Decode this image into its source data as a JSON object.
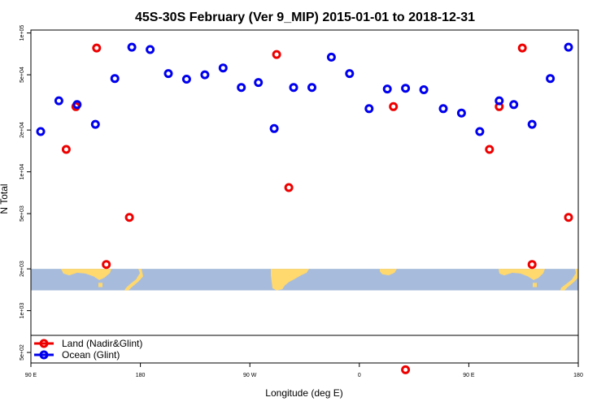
{
  "chart_data": {
    "type": "scatter",
    "title": "45S-30S February (Ver 9_MIP)   2015-01-01 to 2018-12-31",
    "xlabel": "Longitude (deg E)",
    "ylabel": "N Total",
    "y_scale": "log",
    "xlim": [
      90,
      540
    ],
    "ylim": [
      420,
      105000
    ],
    "x_ticks": [
      {
        "value": 90,
        "label": "90 E"
      },
      {
        "value": 180,
        "label": "180"
      },
      {
        "value": 270,
        "label": "90 W"
      },
      {
        "value": 360,
        "label": "0"
      },
      {
        "value": 450,
        "label": "90 E"
      },
      {
        "value": 540,
        "label": "180"
      }
    ],
    "y_ticks": [
      {
        "value": 500,
        "label": "5e+02"
      },
      {
        "value": 1000,
        "label": "1e+03"
      },
      {
        "value": 2000,
        "label": "2e+03"
      },
      {
        "value": 5000,
        "label": "5e+03"
      },
      {
        "value": 10000,
        "label": "1e+04"
      },
      {
        "value": 20000,
        "label": "2e+04"
      },
      {
        "value": 50000,
        "label": "5e+04"
      },
      {
        "value": 100000,
        "label": "1e+05"
      }
    ],
    "map_band": {
      "y_low": 1400,
      "y_high": 2000,
      "ocean_color": "#a7bcdc",
      "land_color": "#ffd86e"
    },
    "legend": {
      "placement": "bottom-left"
    },
    "series": [
      {
        "name": "Land (Nadir&Glint)",
        "color": "#ee0000",
        "points": [
          [
            119,
            14500
          ],
          [
            127,
            29500
          ],
          [
            144,
            78000
          ],
          [
            152,
            2150
          ],
          [
            171,
            4700
          ],
          [
            292,
            70000
          ],
          [
            302,
            7700
          ],
          [
            388,
            29500
          ],
          [
            398,
            375
          ],
          [
            467,
            14500
          ],
          [
            475,
            29500
          ],
          [
            494,
            78000
          ],
          [
            502,
            2150
          ],
          [
            532,
            4700
          ]
        ]
      },
      {
        "name": "Ocean (Glint)",
        "color": "#0000ee",
        "points": [
          [
            98,
            19500
          ],
          [
            113,
            32500
          ],
          [
            128,
            30500
          ],
          [
            143,
            22000
          ],
          [
            159,
            47000
          ],
          [
            173,
            79000
          ],
          [
            188,
            76000
          ],
          [
            203,
            51000
          ],
          [
            218,
            46500
          ],
          [
            233,
            50000
          ],
          [
            248,
            56000
          ],
          [
            263,
            40500
          ],
          [
            277,
            44000
          ],
          [
            290,
            20500
          ],
          [
            306,
            40500
          ],
          [
            321,
            40500
          ],
          [
            337,
            67000
          ],
          [
            352,
            51000
          ],
          [
            368,
            28500
          ],
          [
            383,
            39500
          ],
          [
            398,
            40000
          ],
          [
            413,
            39000
          ],
          [
            429,
            28500
          ],
          [
            444,
            26500
          ],
          [
            459,
            19500
          ],
          [
            475,
            32500
          ],
          [
            487,
            30500
          ],
          [
            502,
            22000
          ],
          [
            517,
            47000
          ],
          [
            532,
            79000
          ]
        ]
      }
    ]
  }
}
